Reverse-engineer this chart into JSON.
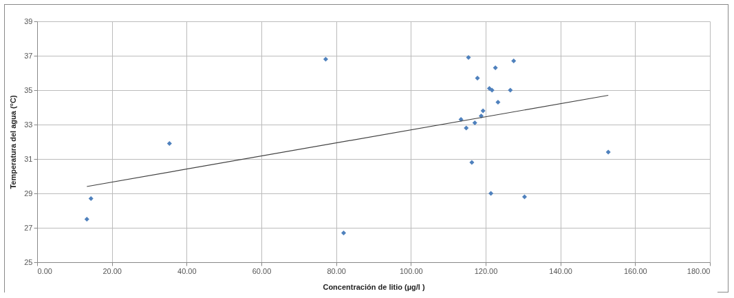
{
  "chart_data": {
    "type": "scatter",
    "xlabel": "Concentración de litio (µg/l )",
    "ylabel": "Temperatura del agua (°C)",
    "xlim": [
      0,
      180
    ],
    "ylim": [
      25,
      39
    ],
    "xticks": [
      {
        "value": 0,
        "label": "0.00"
      },
      {
        "value": 20,
        "label": "20.00"
      },
      {
        "value": 40,
        "label": "40.00"
      },
      {
        "value": 60,
        "label": "60.00"
      },
      {
        "value": 80,
        "label": "80.00"
      },
      {
        "value": 100,
        "label": "100.00"
      },
      {
        "value": 120,
        "label": "120.00"
      },
      {
        "value": 140,
        "label": "140.00"
      },
      {
        "value": 160,
        "label": "160.00"
      },
      {
        "value": 180,
        "label": "180.00"
      }
    ],
    "yticks": [
      25,
      27,
      29,
      31,
      33,
      35,
      37,
      39
    ],
    "grid": true,
    "series": [
      {
        "marker": "diamond",
        "color": "#4f81bd",
        "x": [
          13.3,
          14.4,
          35.4,
          77.2,
          82.0,
          115.4,
          127.5,
          122.6,
          117.8,
          121.0,
          121.7,
          126.6,
          123.3,
          119.3,
          118.8,
          113.4,
          117.1,
          114.8,
          116.3,
          121.4,
          130.4,
          152.8
        ],
        "values": [
          27.5,
          28.7,
          31.9,
          36.8,
          26.7,
          36.9,
          36.7,
          36.3,
          35.7,
          35.1,
          35.0,
          35.0,
          34.3,
          33.8,
          33.5,
          33.3,
          33.1,
          32.8,
          30.8,
          29.0,
          28.8,
          31.4
        ]
      },
      {
        "type": "line",
        "color": "#404040",
        "x": [
          13.3,
          152.8
        ],
        "values": [
          29.4,
          34.7
        ]
      }
    ]
  }
}
